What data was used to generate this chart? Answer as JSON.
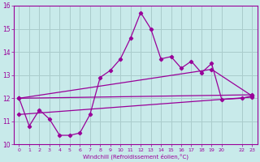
{
  "xlabel": "Windchill (Refroidissement éolien,°C)",
  "bg_color": "#c8eaea",
  "grid_color": "#aacccc",
  "line_color": "#990099",
  "x_ticks": [
    0,
    1,
    2,
    3,
    4,
    5,
    6,
    7,
    8,
    9,
    10,
    11,
    12,
    13,
    14,
    15,
    16,
    17,
    18,
    19,
    20,
    22,
    23
  ],
  "x_tick_labels": [
    "0",
    "1",
    "2",
    "3",
    "4",
    "5",
    "6",
    "7",
    "8",
    "9",
    "10",
    "11",
    "12",
    "13",
    "14",
    "15",
    "16",
    "17",
    "18",
    "19",
    "20",
    "22",
    "23"
  ],
  "ylim": [
    10,
    16
  ],
  "xlim": [
    -0.5,
    23.5
  ],
  "y_ticks": [
    10,
    11,
    12,
    13,
    14,
    15,
    16
  ],
  "series1_x": [
    0,
    1,
    2,
    3,
    4,
    5,
    6,
    7,
    8,
    9,
    10,
    11,
    12,
    13,
    14,
    15,
    16,
    17,
    18,
    19,
    20,
    22,
    23
  ],
  "series1_y": [
    12.0,
    10.8,
    11.5,
    11.1,
    10.4,
    10.4,
    10.5,
    11.3,
    12.9,
    13.2,
    13.7,
    14.6,
    15.7,
    15.0,
    13.7,
    13.8,
    13.3,
    13.6,
    13.1,
    13.5,
    11.95,
    12.0,
    12.1
  ],
  "series2_x": [
    0,
    23
  ],
  "series2_y": [
    12.0,
    12.15
  ],
  "series3_x": [
    0,
    19,
    23
  ],
  "series3_y": [
    12.0,
    13.25,
    12.1
  ],
  "series4_x": [
    0,
    23
  ],
  "series4_y": [
    11.3,
    12.05
  ]
}
